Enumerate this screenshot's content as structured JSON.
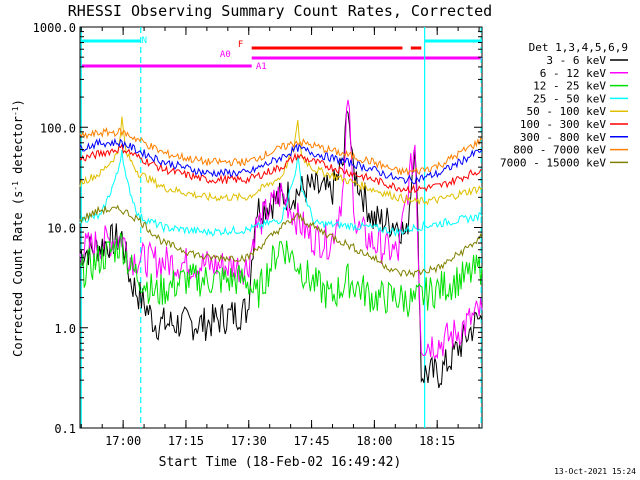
{
  "chart_data": {
    "type": "line",
    "title": "RHESSI Observing Summary Count Rates, Corrected",
    "xlabel": "Start Time (18-Feb-02 16:49:42)",
    "ylabel_main": "Corrected Count Rate (s",
    "ylabel_sup1": "-1",
    "ylabel_mid": " detector",
    "ylabel_sup2": "-1",
    "ylabel_end": ")",
    "yscale": "log",
    "ylim": [
      0.1,
      1000
    ],
    "xlim_minutes": [
      0,
      96
    ],
    "y_ticks": [
      {
        "v": 1000,
        "label": "1000.0"
      },
      {
        "v": 100,
        "label": "100.0"
      },
      {
        "v": 10,
        "label": "10.0"
      },
      {
        "v": 1,
        "label": "1.0"
      },
      {
        "v": 0.1,
        "label": "0.1"
      }
    ],
    "x_ticks": [
      {
        "m": 10.3,
        "label": "17:00"
      },
      {
        "m": 25.3,
        "label": "17:15"
      },
      {
        "m": 40.3,
        "label": "17:30"
      },
      {
        "m": 55.3,
        "label": "17:45"
      },
      {
        "m": 70.3,
        "label": "18:00"
      },
      {
        "m": 85.3,
        "label": "18:15"
      }
    ],
    "legend_header": "Det 1,3,4,5,6,9",
    "series": [
      {
        "name": "3 - 6 keV",
        "color": "#000000",
        "points": [
          [
            0,
            5.5
          ],
          [
            10,
            8
          ],
          [
            12,
            3
          ],
          [
            18,
            1.1
          ],
          [
            30,
            1.1
          ],
          [
            40,
            1.5
          ],
          [
            42,
            15
          ],
          [
            48,
            20
          ],
          [
            55,
            25
          ],
          [
            60,
            22
          ],
          [
            63,
            45
          ],
          [
            64,
            200
          ],
          [
            65,
            40
          ],
          [
            70,
            12
          ],
          [
            76,
            11
          ],
          [
            78,
            8
          ],
          [
            80,
            80
          ],
          [
            81,
            3
          ],
          [
            81.5,
            0.35
          ],
          [
            86,
            0.35
          ],
          [
            90,
            0.6
          ],
          [
            95,
            1.2
          ],
          [
            96,
            1.2
          ]
        ]
      },
      {
        "name": "6 - 12 keV",
        "color": "#ff00ff",
        "points": [
          [
            0,
            6
          ],
          [
            10,
            8
          ],
          [
            12,
            5
          ],
          [
            20,
            4.5
          ],
          [
            40,
            4
          ],
          [
            42,
            10
          ],
          [
            48,
            22
          ],
          [
            52,
            12
          ],
          [
            55,
            8
          ],
          [
            60,
            7
          ],
          [
            63,
            25
          ],
          [
            64,
            220
          ],
          [
            65,
            30
          ],
          [
            66,
            10
          ],
          [
            70,
            7
          ],
          [
            76,
            5.5
          ],
          [
            80,
            70
          ],
          [
            81,
            3
          ],
          [
            81.5,
            0.7
          ],
          [
            86,
            0.7
          ],
          [
            90,
            0.9
          ],
          [
            96,
            1.5
          ]
        ]
      },
      {
        "name": "12 - 25 keV",
        "color": "#00e000",
        "points": [
          [
            0,
            3.5
          ],
          [
            10,
            7
          ],
          [
            12,
            4
          ],
          [
            18,
            2.2
          ],
          [
            25,
            3
          ],
          [
            40,
            3
          ],
          [
            42,
            2
          ],
          [
            48,
            7
          ],
          [
            55,
            3
          ],
          [
            60,
            2
          ],
          [
            64,
            3
          ],
          [
            70,
            2
          ],
          [
            76,
            2
          ],
          [
            80,
            1.8
          ],
          [
            81,
            2
          ],
          [
            86,
            2.5
          ],
          [
            92,
            3.2
          ],
          [
            96,
            4
          ]
        ]
      },
      {
        "name": "25 - 50 keV",
        "color": "#00ffff",
        "points": [
          [
            0,
            12
          ],
          [
            5,
            13
          ],
          [
            9,
            35
          ],
          [
            10,
            60
          ],
          [
            11,
            30
          ],
          [
            14,
            13
          ],
          [
            20,
            10
          ],
          [
            30,
            9
          ],
          [
            40,
            9.5
          ],
          [
            48,
            12
          ],
          [
            51,
            30
          ],
          [
            52,
            50
          ],
          [
            53,
            25
          ],
          [
            56,
            11
          ],
          [
            70,
            10
          ],
          [
            76,
            9
          ],
          [
            80,
            10
          ],
          [
            86,
            11
          ],
          [
            96,
            13
          ]
        ]
      },
      {
        "name": "50 - 100 keV",
        "color": "#e0c000",
        "points": [
          [
            0,
            28
          ],
          [
            5,
            35
          ],
          [
            9,
            55
          ],
          [
            10,
            120
          ],
          [
            11,
            55
          ],
          [
            14,
            35
          ],
          [
            20,
            25
          ],
          [
            30,
            20
          ],
          [
            40,
            20
          ],
          [
            48,
            32
          ],
          [
            51,
            60
          ],
          [
            52,
            110
          ],
          [
            53,
            50
          ],
          [
            56,
            38
          ],
          [
            70,
            24
          ],
          [
            76,
            20
          ],
          [
            80,
            18
          ],
          [
            86,
            19
          ],
          [
            96,
            25
          ]
        ]
      },
      {
        "name": "100 - 300 keV",
        "color": "#ff0000",
        "points": [
          [
            0,
            48
          ],
          [
            5,
            55
          ],
          [
            10,
            62
          ],
          [
            14,
            50
          ],
          [
            20,
            38
          ],
          [
            30,
            30
          ],
          [
            40,
            30
          ],
          [
            48,
            40
          ],
          [
            52,
            52
          ],
          [
            56,
            45
          ],
          [
            70,
            30
          ],
          [
            76,
            25
          ],
          [
            80,
            24
          ],
          [
            86,
            26
          ],
          [
            96,
            38
          ]
        ]
      },
      {
        "name": "300 - 800 keV",
        "color": "#0000ff",
        "points": [
          [
            0,
            62
          ],
          [
            5,
            70
          ],
          [
            10,
            70
          ],
          [
            14,
            58
          ],
          [
            20,
            45
          ],
          [
            30,
            35
          ],
          [
            40,
            35
          ],
          [
            48,
            50
          ],
          [
            52,
            62
          ],
          [
            56,
            55
          ],
          [
            70,
            38
          ],
          [
            76,
            30
          ],
          [
            80,
            30
          ],
          [
            86,
            35
          ],
          [
            96,
            60
          ]
        ]
      },
      {
        "name": "800 - 7000 keV",
        "color": "#ff8000",
        "points": [
          [
            0,
            80
          ],
          [
            5,
            88
          ],
          [
            10,
            90
          ],
          [
            14,
            75
          ],
          [
            20,
            55
          ],
          [
            30,
            45
          ],
          [
            40,
            45
          ],
          [
            48,
            62
          ],
          [
            52,
            72
          ],
          [
            56,
            65
          ],
          [
            70,
            45
          ],
          [
            76,
            36
          ],
          [
            80,
            36
          ],
          [
            86,
            42
          ],
          [
            96,
            75
          ]
        ]
      },
      {
        "name": "7000 - 15000 keV",
        "color": "#808000",
        "points": [
          [
            0,
            12
          ],
          [
            5,
            15
          ],
          [
            10,
            15
          ],
          [
            14,
            12
          ],
          [
            20,
            7
          ],
          [
            30,
            5
          ],
          [
            40,
            5
          ],
          [
            48,
            10
          ],
          [
            52,
            13
          ],
          [
            56,
            10
          ],
          [
            70,
            5
          ],
          [
            76,
            3.5
          ],
          [
            80,
            3.5
          ],
          [
            86,
            4
          ],
          [
            96,
            8
          ]
        ]
      }
    ],
    "flag_bars": [
      {
        "label": "N",
        "color": "#00ffff",
        "label_m": 16
      },
      {
        "label": "F",
        "color": "#ff0000",
        "label_m": 39
      },
      {
        "label": "A0",
        "color": "#ff00ff",
        "label_m": 36
      },
      {
        "label": "A1",
        "color": "#ff00ff",
        "label_m": 42
      }
    ],
    "timestamp": "13-Oct-2021 15:24"
  }
}
